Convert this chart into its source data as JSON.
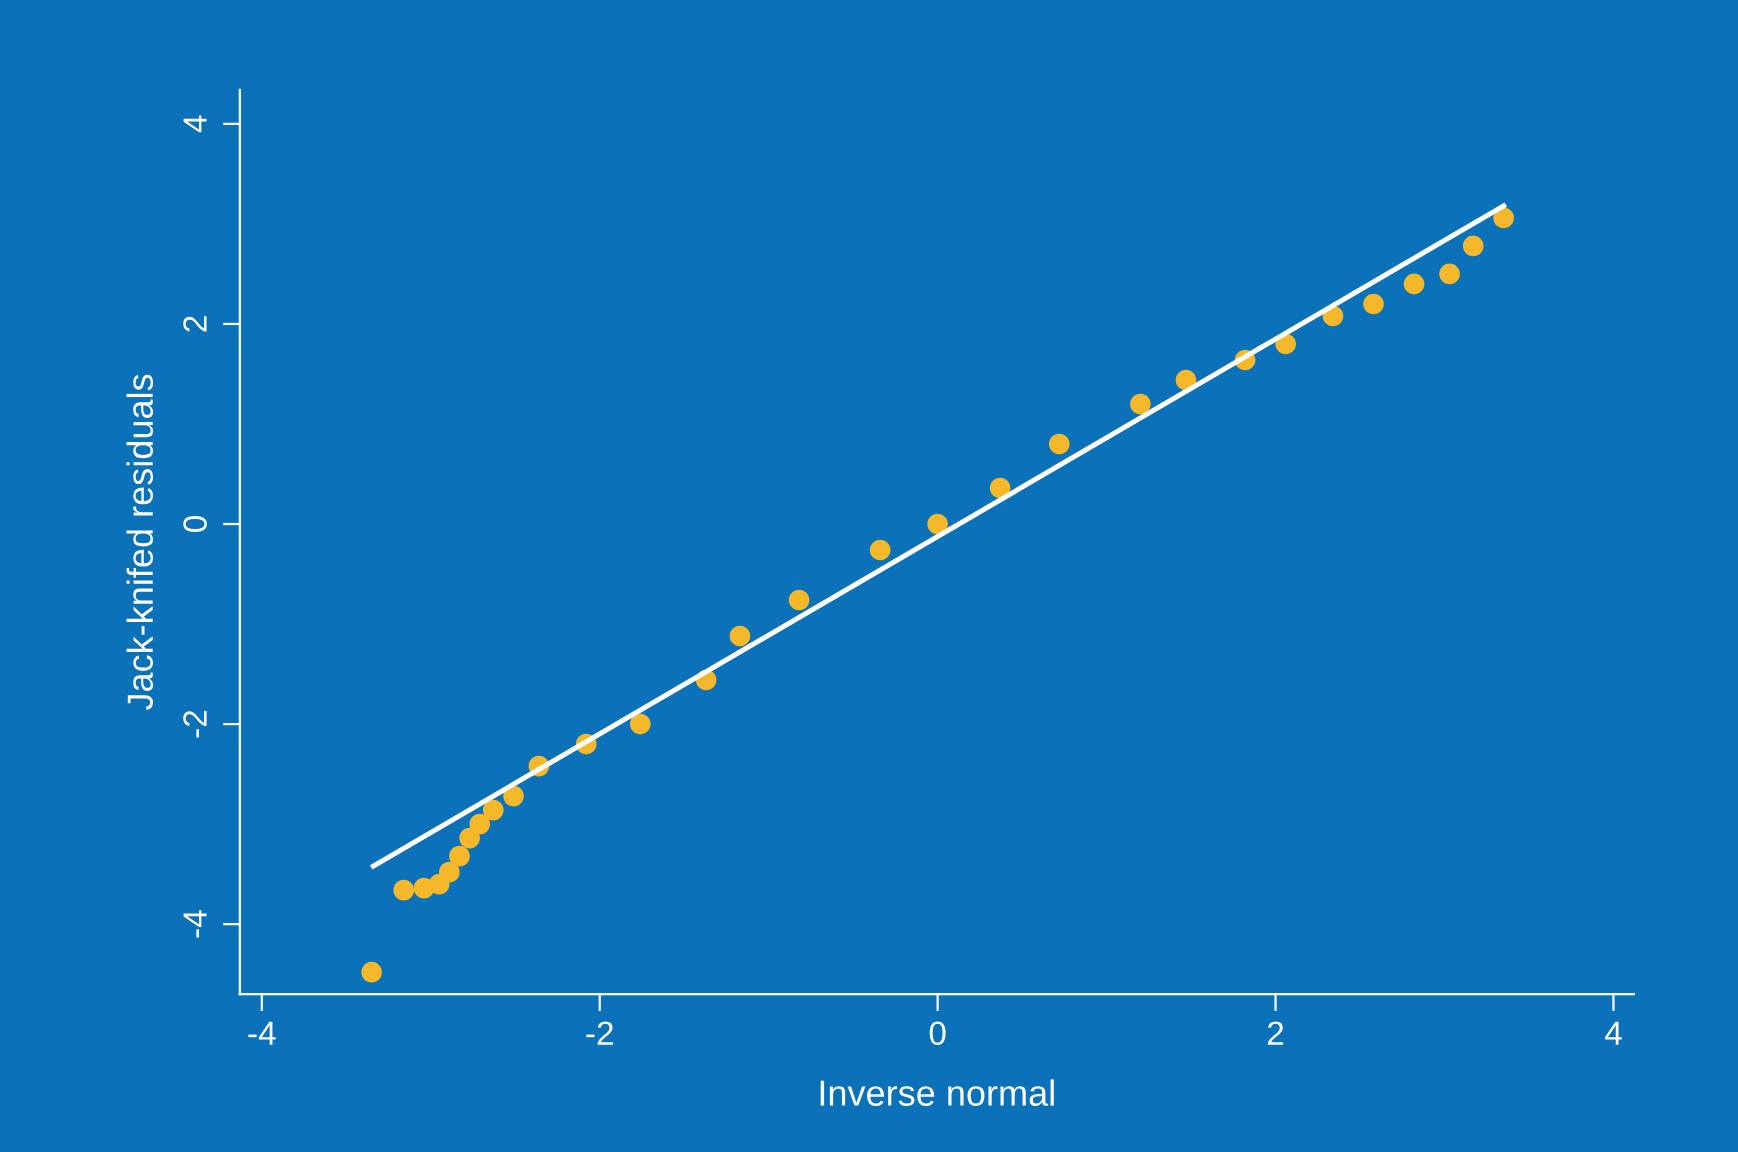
{
  "chart_data": {
    "type": "scatter",
    "xlabel": "Inverse normal",
    "ylabel": "Jack-knifed residuals",
    "xlim": [
      -4.13,
      4.12
    ],
    "ylim": [
      -4.7,
      4.34
    ],
    "xticks": [
      -4,
      -2,
      0,
      2,
      4
    ],
    "yticks": [
      -4,
      -2,
      0,
      2,
      4
    ],
    "grid": false,
    "series": [
      {
        "marker": "circle",
        "color": "#f5b82a",
        "x": [
          -3.35,
          -3.16,
          -3.04,
          -2.95,
          -2.89,
          -2.83,
          -2.77,
          -2.71,
          -2.63,
          -2.51,
          -2.36,
          -2.08,
          -1.76,
          -1.37,
          -1.17,
          -0.82,
          -0.34,
          0,
          0.37,
          0.72,
          1.2,
          1.47,
          1.82,
          2.06,
          2.34,
          2.58,
          2.82,
          3.03,
          3.17,
          3.35
        ],
        "values": [
          -4.48,
          -3.66,
          -3.64,
          -3.6,
          -3.48,
          -3.32,
          -3.14,
          -3.0,
          -2.86,
          -2.72,
          -2.42,
          -2.2,
          -2.0,
          -1.56,
          -1.12,
          -0.76,
          -0.26,
          0,
          0.36,
          0.8,
          1.2,
          1.44,
          1.64,
          1.8,
          2.08,
          2.2,
          2.4,
          2.5,
          2.78,
          3.06
        ]
      },
      {
        "type": "line",
        "marker": "none",
        "color": "#ffffff",
        "x": [
          -3.34,
          3.35
        ],
        "values": [
          -3.42,
          3.18
        ]
      }
    ]
  }
}
